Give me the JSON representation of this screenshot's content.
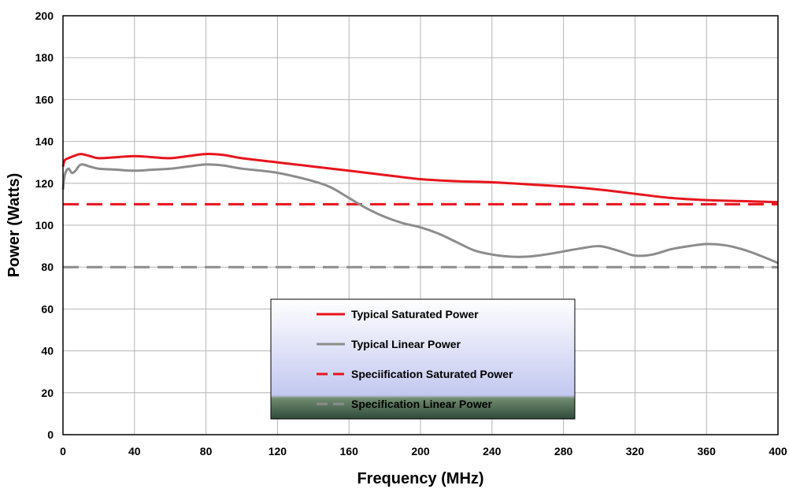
{
  "chart_data": {
    "type": "line",
    "title": "",
    "xlabel": "Frequency (MHz)",
    "ylabel": "Power (Watts)",
    "xlim": [
      0,
      400
    ],
    "ylim": [
      0,
      200
    ],
    "xticks": [
      0,
      40,
      80,
      120,
      160,
      200,
      240,
      280,
      320,
      360,
      400
    ],
    "yticks": [
      0,
      20,
      40,
      60,
      80,
      100,
      120,
      140,
      160,
      180,
      200
    ],
    "grid": true,
    "legend_position": "bottom-center",
    "series": [
      {
        "name": "Typical Saturated Power",
        "color": "#e8141c",
        "style": "solid",
        "x": [
          0,
          1,
          3,
          6,
          10,
          15,
          20,
          30,
          40,
          50,
          60,
          70,
          80,
          90,
          100,
          120,
          140,
          160,
          180,
          200,
          220,
          240,
          260,
          280,
          300,
          320,
          340,
          360,
          380,
          400
        ],
        "y": [
          128,
          131,
          132,
          133,
          134,
          133,
          132,
          132.5,
          133,
          132.5,
          132,
          133,
          134,
          133.5,
          132,
          130,
          128,
          126,
          124,
          122,
          121,
          120.5,
          119.5,
          118.5,
          117,
          115,
          113,
          112,
          111.5,
          111
        ]
      },
      {
        "name": "Typical Linear Power",
        "color": "#8c8c8c",
        "style": "solid",
        "x": [
          0,
          1,
          3,
          5,
          7,
          10,
          15,
          20,
          30,
          40,
          50,
          60,
          70,
          80,
          90,
          100,
          120,
          140,
          150,
          160,
          170,
          180,
          190,
          200,
          210,
          220,
          230,
          240,
          250,
          260,
          270,
          280,
          290,
          300,
          310,
          320,
          330,
          340,
          350,
          360,
          370,
          380,
          390,
          400
        ],
        "y": [
          117,
          124,
          127,
          125,
          126,
          129,
          128,
          127,
          126.5,
          126,
          126.5,
          127,
          128,
          129,
          128.5,
          127,
          125,
          121,
          118,
          113,
          108,
          104,
          101,
          99,
          96,
          92,
          88,
          86,
          85,
          85,
          86,
          87.5,
          89,
          90,
          88,
          85.5,
          86,
          88.5,
          90,
          91,
          90.5,
          88.5,
          85.5,
          82
        ]
      },
      {
        "name": "Speciification Saturated Power",
        "color": "#e8141c",
        "style": "dashed",
        "x": [
          0,
          400
        ],
        "y": [
          110,
          110
        ]
      },
      {
        "name": "Specification Linear Power",
        "color": "#8c8c8c",
        "style": "dashed",
        "x": [
          0,
          400
        ],
        "y": [
          80,
          80
        ]
      }
    ]
  }
}
